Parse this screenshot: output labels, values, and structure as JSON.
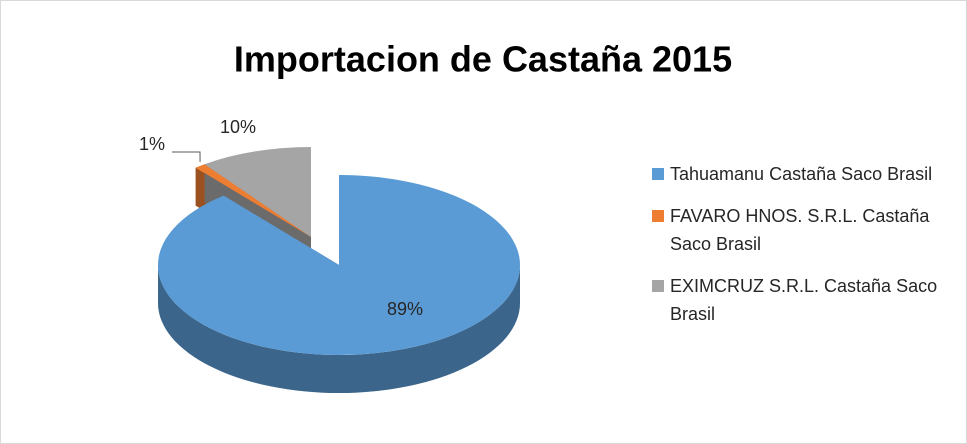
{
  "chart_data": {
    "type": "pie",
    "title": "Importacion de Castaña 2015",
    "categories": [
      "Tahuamanu Castaña Saco Brasil",
      "FAVARO HNOS. S.R.L. Castaña Saco Brasil",
      "EXIMCRUZ S.R.L. Castaña Saco Brasil"
    ],
    "values": [
      89,
      1,
      10
    ],
    "value_labels": [
      "89%",
      "1%",
      "10%"
    ],
    "colors": [
      "#5b9bd5",
      "#ed7d31",
      "#a5a5a5"
    ],
    "legend": "right"
  }
}
